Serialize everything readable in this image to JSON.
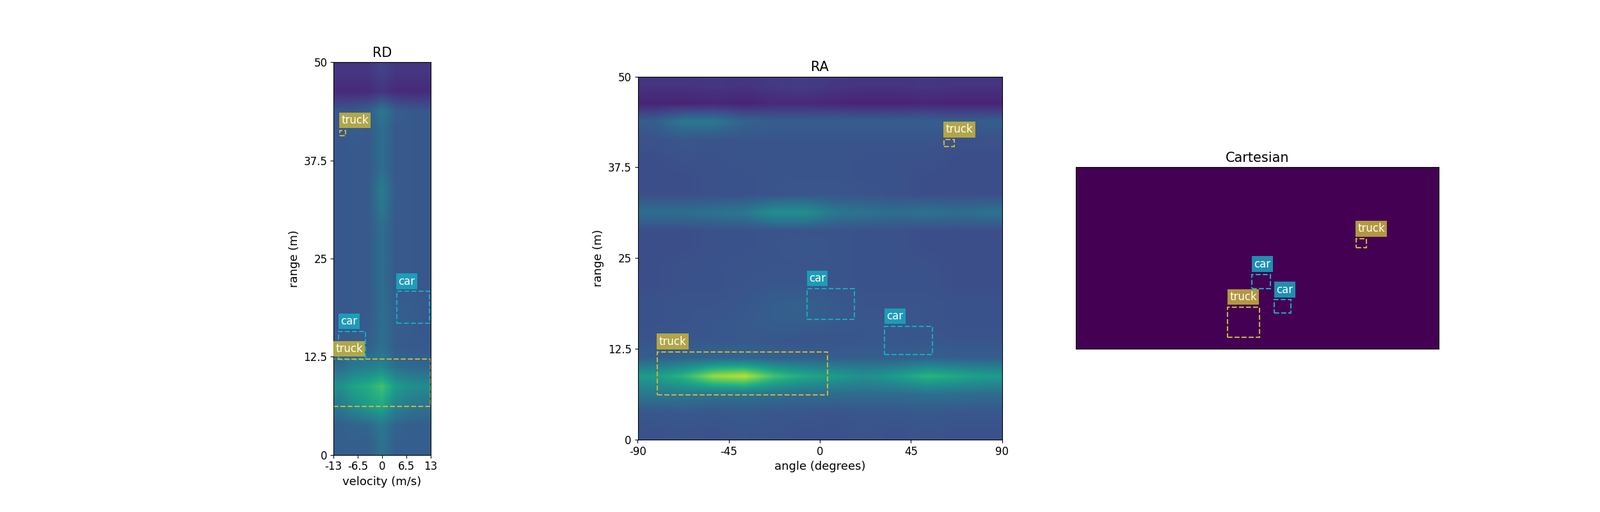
{
  "chart_data": [
    {
      "type": "heatmap",
      "title": "RD",
      "xlabel": "velocity (m/s)",
      "ylabel": "range (m)",
      "xlim": [
        -13,
        13
      ],
      "ylim": [
        0,
        50
      ],
      "xticks": [
        -13,
        -6.5,
        0,
        6.5,
        13
      ],
      "yticks": [
        0,
        12.5,
        25,
        37.5,
        50
      ],
      "color_range": [
        0,
        1
      ],
      "cells": [
        [
          0.3,
          0.3,
          0.3,
          0.38,
          0.3,
          0.3,
          0.3
        ],
        [
          0.3,
          0.32,
          0.33,
          0.4,
          0.32,
          0.3,
          0.3
        ],
        [
          0.4,
          0.48,
          0.55,
          0.6,
          0.45,
          0.4,
          0.38
        ],
        [
          0.5,
          0.58,
          0.62,
          0.7,
          0.55,
          0.5,
          0.48
        ],
        [
          0.35,
          0.4,
          0.42,
          0.45,
          0.36,
          0.34,
          0.33
        ],
        [
          0.28,
          0.3,
          0.3,
          0.37,
          0.29,
          0.28,
          0.28
        ],
        [
          0.27,
          0.28,
          0.29,
          0.36,
          0.3,
          0.29,
          0.27
        ],
        [
          0.27,
          0.28,
          0.28,
          0.36,
          0.3,
          0.3,
          0.28
        ],
        [
          0.27,
          0.28,
          0.28,
          0.36,
          0.28,
          0.28,
          0.27
        ],
        [
          0.27,
          0.28,
          0.28,
          0.36,
          0.28,
          0.28,
          0.27
        ],
        [
          0.27,
          0.28,
          0.28,
          0.36,
          0.28,
          0.28,
          0.27
        ],
        [
          0.27,
          0.28,
          0.28,
          0.36,
          0.28,
          0.28,
          0.27
        ],
        [
          0.27,
          0.28,
          0.28,
          0.4,
          0.28,
          0.28,
          0.27
        ],
        [
          0.27,
          0.28,
          0.28,
          0.42,
          0.28,
          0.28,
          0.27
        ],
        [
          0.27,
          0.28,
          0.28,
          0.36,
          0.28,
          0.28,
          0.27
        ],
        [
          0.27,
          0.28,
          0.28,
          0.36,
          0.28,
          0.28,
          0.27
        ],
        [
          0.27,
          0.3,
          0.28,
          0.36,
          0.28,
          0.28,
          0.27
        ],
        [
          0.27,
          0.28,
          0.3,
          0.4,
          0.3,
          0.28,
          0.27
        ],
        [
          0.12,
          0.12,
          0.12,
          0.15,
          0.12,
          0.12,
          0.12
        ],
        [
          0.16,
          0.16,
          0.16,
          0.2,
          0.16,
          0.16,
          0.16
        ]
      ],
      "boxes": [
        {
          "label": "truck",
          "color": "#c8b43c",
          "x": [
            -11.4,
            -9.8
          ],
          "y": [
            40.6,
            41.3
          ]
        },
        {
          "label": "car",
          "color": "#1aa8c0",
          "x": [
            3.9,
            12.7
          ],
          "y": [
            16.8,
            20.8
          ]
        },
        {
          "label": "car",
          "color": "#1aa8c0",
          "x": [
            -11.6,
            -4.5
          ],
          "y": [
            12.1,
            15.7
          ]
        },
        {
          "label": "truck",
          "color": "#c8b43c",
          "x": [
            -13,
            13
          ],
          "y": [
            6.2,
            12.2
          ]
        }
      ]
    },
    {
      "type": "heatmap",
      "title": "RA",
      "xlabel": "angle (degrees)",
      "ylabel": "range (m)",
      "xlim": [
        -90,
        90
      ],
      "ylim": [
        0,
        50
      ],
      "xticks": [
        -90,
        -45,
        0,
        45,
        90
      ],
      "yticks": [
        0,
        12.5,
        25,
        37.5,
        50
      ],
      "color_range": [
        0,
        1
      ],
      "cells": [
        [
          0.25,
          0.26,
          0.25,
          0.27,
          0.26,
          0.25,
          0.25,
          0.26,
          0.25,
          0.26,
          0.25,
          0.25
        ],
        [
          0.27,
          0.28,
          0.27,
          0.28,
          0.27,
          0.27,
          0.26,
          0.27,
          0.27,
          0.28,
          0.27,
          0.27
        ],
        [
          0.4,
          0.4,
          0.38,
          0.38,
          0.36,
          0.35,
          0.35,
          0.35,
          0.35,
          0.36,
          0.36,
          0.35
        ],
        [
          0.55,
          0.65,
          0.85,
          0.9,
          0.7,
          0.6,
          0.55,
          0.5,
          0.55,
          0.65,
          0.6,
          0.55
        ],
        [
          0.3,
          0.32,
          0.33,
          0.33,
          0.31,
          0.3,
          0.3,
          0.3,
          0.3,
          0.31,
          0.3,
          0.3
        ],
        [
          0.26,
          0.27,
          0.27,
          0.28,
          0.27,
          0.26,
          0.26,
          0.27,
          0.27,
          0.27,
          0.26,
          0.26
        ],
        [
          0.25,
          0.26,
          0.27,
          0.28,
          0.3,
          0.3,
          0.28,
          0.27,
          0.27,
          0.26,
          0.25,
          0.25
        ],
        [
          0.25,
          0.26,
          0.26,
          0.27,
          0.3,
          0.31,
          0.28,
          0.26,
          0.26,
          0.26,
          0.25,
          0.25
        ],
        [
          0.24,
          0.25,
          0.25,
          0.26,
          0.27,
          0.27,
          0.26,
          0.25,
          0.25,
          0.25,
          0.24,
          0.24
        ],
        [
          0.24,
          0.25,
          0.25,
          0.26,
          0.26,
          0.26,
          0.26,
          0.25,
          0.25,
          0.25,
          0.24,
          0.24
        ],
        [
          0.24,
          0.24,
          0.25,
          0.25,
          0.26,
          0.27,
          0.26,
          0.25,
          0.25,
          0.24,
          0.24,
          0.24
        ],
        [
          0.24,
          0.24,
          0.25,
          0.25,
          0.26,
          0.26,
          0.26,
          0.25,
          0.25,
          0.24,
          0.24,
          0.24
        ],
        [
          0.36,
          0.36,
          0.38,
          0.4,
          0.5,
          0.5,
          0.4,
          0.38,
          0.36,
          0.38,
          0.36,
          0.38
        ],
        [
          0.24,
          0.24,
          0.25,
          0.25,
          0.26,
          0.27,
          0.27,
          0.26,
          0.25,
          0.24,
          0.24,
          0.24
        ],
        [
          0.24,
          0.24,
          0.25,
          0.25,
          0.26,
          0.26,
          0.26,
          0.25,
          0.25,
          0.24,
          0.24,
          0.24
        ],
        [
          0.24,
          0.25,
          0.25,
          0.26,
          0.26,
          0.26,
          0.26,
          0.25,
          0.25,
          0.25,
          0.24,
          0.24
        ],
        [
          0.25,
          0.27,
          0.26,
          0.26,
          0.26,
          0.26,
          0.26,
          0.26,
          0.26,
          0.26,
          0.25,
          0.25
        ],
        [
          0.3,
          0.4,
          0.4,
          0.32,
          0.3,
          0.3,
          0.3,
          0.3,
          0.3,
          0.3,
          0.3,
          0.3
        ],
        [
          0.1,
          0.1,
          0.11,
          0.1,
          0.12,
          0.12,
          0.11,
          0.1,
          0.1,
          0.11,
          0.1,
          0.1
        ],
        [
          0.15,
          0.15,
          0.16,
          0.15,
          0.17,
          0.18,
          0.16,
          0.15,
          0.15,
          0.16,
          0.15,
          0.15
        ]
      ],
      "boxes": [
        {
          "label": "truck",
          "color": "#c8b43c",
          "x": [
            61.3,
            66.3
          ],
          "y": [
            40.4,
            41.3
          ]
        },
        {
          "label": "car",
          "color": "#1aa8c0",
          "x": [
            -6.3,
            16.9
          ],
          "y": [
            16.6,
            20.8
          ]
        },
        {
          "label": "car",
          "color": "#1aa8c0",
          "x": [
            32.0,
            55.7
          ],
          "y": [
            11.7,
            15.6
          ]
        },
        {
          "label": "truck",
          "color": "#c8b43c",
          "x": [
            -80.4,
            3.8
          ],
          "y": [
            6.2,
            12.1
          ]
        }
      ]
    },
    {
      "type": "heatmap",
      "title": "Cartesian",
      "xlim": [
        -50,
        50
      ],
      "ylim": [
        0,
        50
      ],
      "tick_labels": false,
      "color_range": [
        0,
        1
      ],
      "cells": [
        [
          0.0
        ]
      ],
      "boxes": [
        {
          "label": "truck",
          "color": "#c8b43c",
          "x": [
            27.2,
            30.1
          ],
          "y": [
            27.8,
            30.3
          ]
        },
        {
          "label": "car",
          "color": "#1aa8c0",
          "x": [
            -1.4,
            3.7
          ],
          "y": [
            16.6,
            20.5
          ]
        },
        {
          "label": "car",
          "color": "#1aa8c0",
          "x": [
            4.8,
            9.3
          ],
          "y": [
            9.8,
            13.5
          ]
        },
        {
          "label": "truck",
          "color": "#c8b43c",
          "x": [
            -8.1,
            0.6
          ],
          "y": [
            3.1,
            11.5
          ]
        }
      ]
    }
  ]
}
